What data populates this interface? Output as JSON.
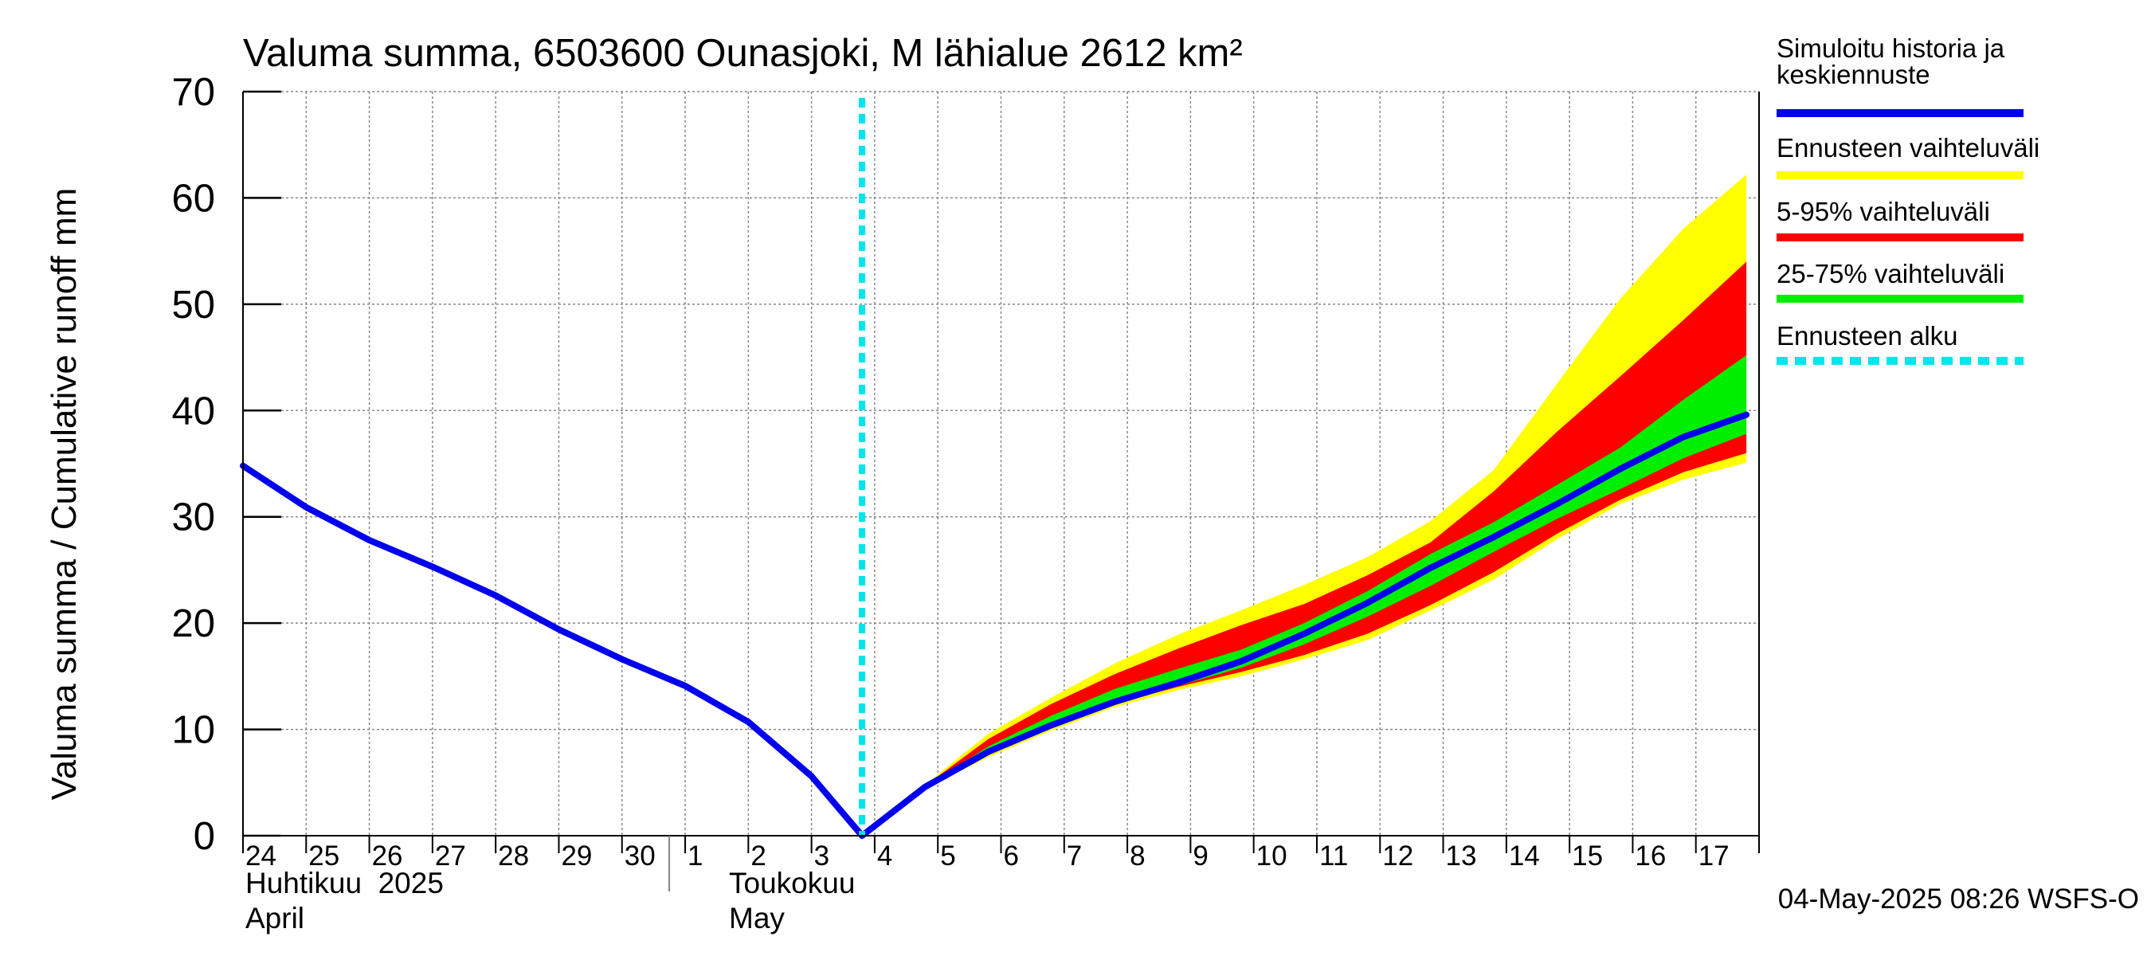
{
  "chart_data": {
    "type": "area",
    "title": "Valuma summa, 6503600 Ounasjoki, M lähialue 2612 km²",
    "ylabel": "Valuma summa / Cumulative runoff    mm",
    "ylim": [
      0,
      70
    ],
    "y_ticks": [
      0,
      10,
      20,
      30,
      40,
      50,
      60,
      70
    ],
    "x_days": [
      "24",
      "25",
      "26",
      "27",
      "28",
      "29",
      "30",
      "1",
      "2",
      "3",
      "4",
      "5",
      "6",
      "7",
      "8",
      "9",
      "10",
      "11",
      "12",
      "13",
      "14",
      "15",
      "16",
      "17"
    ],
    "month_labels": [
      {
        "fi": "Huhtikuu  2025",
        "en": "April",
        "start_day_index": 0
      },
      {
        "fi": "Toukokuu",
        "en": "May",
        "start_day_index": 7
      }
    ],
    "forecast_start_day_index": 9.8,
    "series": [
      {
        "name": "Simuloitu historia ja keskiennuste",
        "color": "#0000ee",
        "x": [
          0,
          1,
          2,
          3,
          4,
          5,
          6,
          7,
          8,
          9,
          9.8,
          10.8,
          11.8,
          12.8,
          13.8,
          14.8,
          15.8,
          16.8,
          17.8,
          18.8,
          19.8,
          20.8,
          21.8,
          22.8,
          23.8
        ],
        "values": [
          34.8,
          30.9,
          27.8,
          25.3,
          22.6,
          19.4,
          16.6,
          14.1,
          10.7,
          5.6,
          0.0,
          4.6,
          7.9,
          10.4,
          12.6,
          14.4,
          16.4,
          19.0,
          21.9,
          25.2,
          28.1,
          31.2,
          34.5,
          37.5,
          39.6
        ]
      }
    ],
    "bands": [
      {
        "name": "Ennusteen vaihteluväli",
        "color": "#ffff00",
        "x": [
          9.8,
          10.8,
          11.8,
          12.8,
          13.8,
          14.8,
          15.8,
          16.8,
          17.8,
          18.8,
          19.8,
          20.8,
          21.8,
          22.8,
          23.8
        ],
        "upper": [
          0.0,
          4.8,
          9.6,
          13.0,
          16.2,
          18.9,
          21.2,
          23.6,
          26.2,
          29.6,
          34.4,
          42.5,
          50.5,
          57.1,
          62.2
        ],
        "lower": [
          0.0,
          4.4,
          7.4,
          9.9,
          12.1,
          13.7,
          15.0,
          16.6,
          18.4,
          21.2,
          24.1,
          27.9,
          31.2,
          33.5,
          35.1
        ]
      },
      {
        "name": "5-95% vaihteluväli",
        "color": "#ff0000",
        "x": [
          9.8,
          10.8,
          11.8,
          12.8,
          13.8,
          14.8,
          15.8,
          16.8,
          17.8,
          18.8,
          19.8,
          20.8,
          21.8,
          22.8,
          23.8
        ],
        "upper": [
          0.0,
          4.7,
          9.1,
          12.4,
          15.2,
          17.6,
          19.8,
          21.8,
          24.5,
          27.6,
          32.4,
          38.0,
          43.2,
          48.5,
          54.0
        ],
        "lower": [
          0.0,
          4.5,
          7.6,
          10.1,
          12.4,
          14.0,
          15.4,
          17.0,
          19.0,
          21.7,
          24.8,
          28.4,
          31.6,
          34.2,
          36.0
        ]
      },
      {
        "name": "25-75% vaihteluväli",
        "color": "#00ee00",
        "x": [
          9.8,
          10.8,
          11.8,
          12.8,
          13.8,
          14.8,
          15.8,
          16.8,
          17.8,
          18.8,
          19.8,
          20.8,
          21.8,
          22.8,
          23.8
        ],
        "upper": [
          0.0,
          4.6,
          8.4,
          11.3,
          13.8,
          15.7,
          17.5,
          20.0,
          23.0,
          26.5,
          29.5,
          33.0,
          36.5,
          41.0,
          45.2
        ],
        "lower": [
          0.0,
          4.5,
          7.8,
          10.3,
          12.4,
          14.1,
          15.8,
          18.0,
          20.6,
          23.5,
          26.7,
          29.8,
          32.6,
          35.5,
          37.8
        ]
      }
    ],
    "legend": [
      {
        "label": "Simuloitu historia ja keskiennuste",
        "color": "#0000ee",
        "style": "solid"
      },
      {
        "label": "Ennusteen vaihteluväli",
        "color": "#ffff00",
        "style": "solid"
      },
      {
        "label": "5-95% vaihteluväli",
        "color": "#ff0000",
        "style": "solid"
      },
      {
        "label": "25-75% vaihteluväli",
        "color": "#00ee00",
        "style": "solid"
      },
      {
        "label": "Ennusteen alku",
        "color": "#00e5ee",
        "style": "dashed"
      }
    ],
    "legend_position": "right",
    "timestamp": "04-May-2025 08:26 WSFS-O",
    "grid": true
  }
}
